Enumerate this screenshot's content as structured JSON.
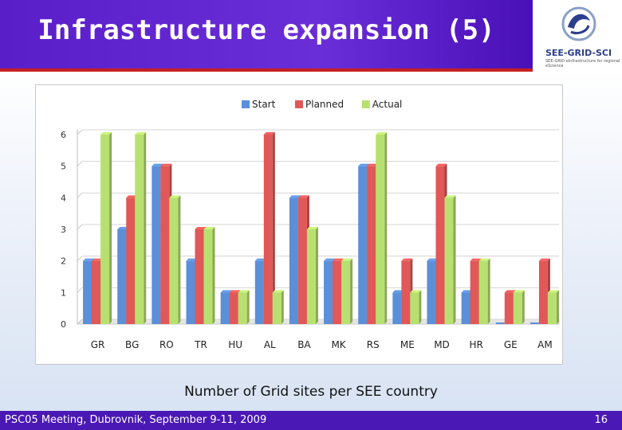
{
  "slide": {
    "title": "Infrastructure expansion (5)",
    "caption": "Number of Grid sites per SEE country",
    "footer": "PSC05 Meeting, Dubrovnik, September 9-11, 2009",
    "page_number": "16",
    "logo_text": "SEE-GRID-SCI",
    "logo_subtext": "SEE-GRID eInfrastructure for regional eScience"
  },
  "colors": {
    "Start": "#5b8fd8",
    "Planned": "#e05858",
    "Actual": "#b8e070"
  },
  "chart_data": {
    "type": "bar",
    "title": "",
    "xlabel": "",
    "ylabel": "",
    "ylim": [
      0,
      6
    ],
    "yticks": [
      0,
      1,
      2,
      3,
      4,
      5,
      6
    ],
    "legend_position": "top-center",
    "grid": true,
    "categories": [
      "GR",
      "BG",
      "RO",
      "TR",
      "HU",
      "AL",
      "BA",
      "MK",
      "RS",
      "ME",
      "MD",
      "HR",
      "GE",
      "AM"
    ],
    "series": [
      {
        "name": "Start",
        "values": [
          2,
          3,
          5,
          2,
          1,
          2,
          4,
          2,
          5,
          1,
          2,
          1,
          0,
          0
        ]
      },
      {
        "name": "Planned",
        "values": [
          2,
          4,
          5,
          3,
          1,
          6,
          4,
          2,
          5,
          2,
          5,
          2,
          1,
          2
        ]
      },
      {
        "name": "Actual",
        "values": [
          6,
          6,
          4,
          3,
          1,
          1,
          3,
          2,
          6,
          1,
          4,
          2,
          1,
          1
        ]
      }
    ]
  }
}
